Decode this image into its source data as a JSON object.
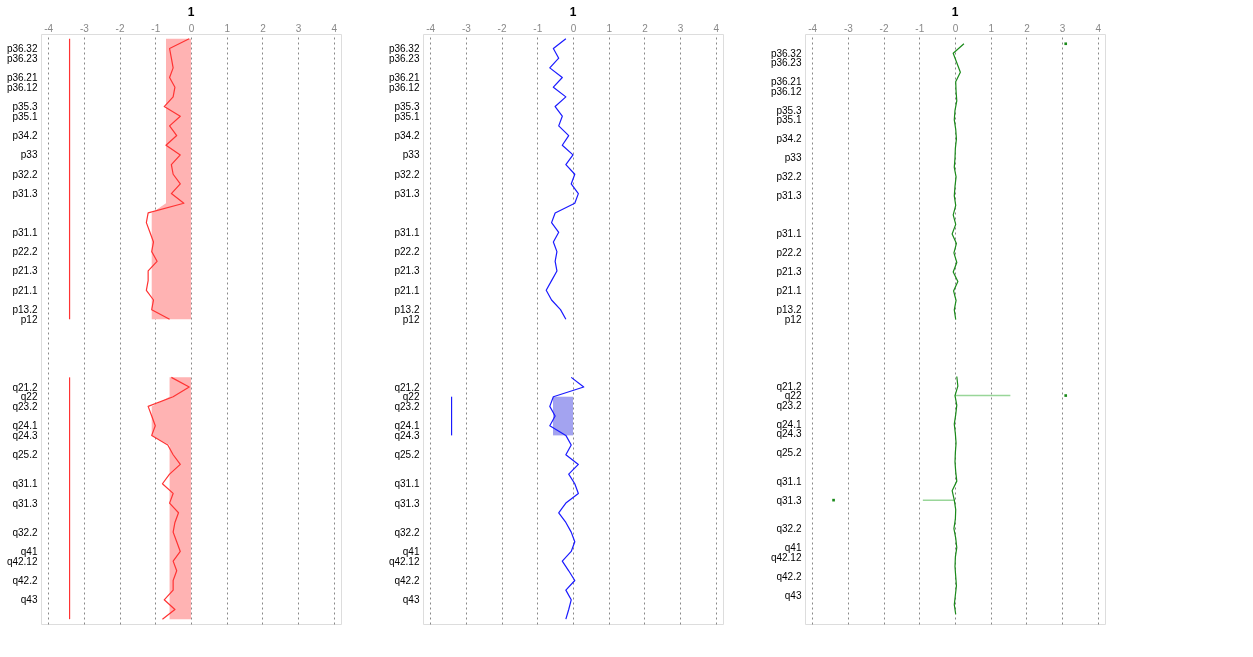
{
  "chart_data": [
    {
      "type": "line",
      "title": "1",
      "orientation": "horizontal",
      "xlim": [
        -4.2,
        4.2
      ],
      "xticks": [
        -4,
        -3,
        -2,
        -1,
        0,
        1,
        2,
        3,
        4
      ],
      "grid": "x",
      "categories": [
        null,
        "p36.32",
        "p36.23",
        null,
        "p36.21",
        "p36.12",
        null,
        "p35.3",
        "p35.1",
        null,
        "p34.2",
        null,
        "p33",
        null,
        "p32.2",
        null,
        "p31.3",
        null,
        null,
        null,
        "p31.1",
        null,
        "p22.2",
        null,
        "p21.3",
        null,
        "p21.1",
        null,
        "p13.2",
        "p12",
        null,
        null,
        null,
        null,
        null,
        null,
        "q21.2",
        "q22",
        "q23.2",
        null,
        "q24.1",
        "q24.3",
        null,
        "q25.2",
        null,
        null,
        "q31.1",
        null,
        "q31.3",
        null,
        null,
        "q32.2",
        null,
        "q41",
        "q42.12",
        null,
        "q42.2",
        null,
        "q43",
        null,
        null
      ],
      "series": [
        {
          "type": "area",
          "color": "#ffb3b3",
          "values": [
            -0.7,
            -0.7,
            -0.7,
            -0.7,
            -0.7,
            -0.7,
            -0.7,
            -0.7,
            -0.7,
            -0.7,
            -0.7,
            -0.7,
            -0.7,
            -0.7,
            -0.7,
            -0.7,
            -0.7,
            -0.7,
            -1.1,
            -1.1,
            -1.1,
            -1.1,
            -1.1,
            -1.1,
            -1.1,
            -1.1,
            -1.1,
            -1.1,
            -1.1,
            -1.1,
            null,
            null,
            null,
            null,
            null,
            -0.6,
            -0.6,
            -0.6,
            -1.1,
            -1.1,
            -1.1,
            -1.1,
            -0.6,
            -0.6,
            -0.6,
            -0.6,
            -0.6,
            -0.6,
            -0.6,
            -0.6,
            -0.6,
            -0.6,
            -0.6,
            -0.6,
            -0.6,
            -0.6,
            -0.6,
            -0.6,
            -0.6,
            -0.6,
            -0.6
          ]
        },
        {
          "color": "#ff3333",
          "values": [
            -0.05,
            -0.6,
            -0.55,
            -0.5,
            -0.6,
            -0.45,
            -0.5,
            -0.75,
            -0.3,
            -0.6,
            -0.4,
            -0.7,
            -0.3,
            -0.55,
            -0.5,
            -0.3,
            -0.55,
            -0.2,
            -1.2,
            -1.25,
            -1.15,
            -1.05,
            -1.1,
            -0.95,
            -1.2,
            -1.2,
            -1.25,
            -1.05,
            -1.1,
            -0.6,
            null,
            null,
            null,
            null,
            null,
            -0.55,
            -0.05,
            -0.5,
            -1.2,
            -1.1,
            -1.0,
            -1.1,
            -0.65,
            -0.5,
            -0.3,
            -0.6,
            -0.8,
            -0.5,
            -0.6,
            -0.35,
            -0.45,
            -0.5,
            -0.4,
            -0.3,
            -0.5,
            -0.4,
            -0.5,
            -0.5,
            -0.75,
            -0.45,
            -0.8
          ]
        },
        {
          "color": "#ff3333",
          "values": [
            -3.4,
            -3.4,
            -3.4,
            -3.4,
            -3.4,
            -3.4,
            -3.4,
            -3.4,
            -3.4,
            -3.4,
            -3.4,
            -3.4,
            -3.4,
            -3.4,
            -3.4,
            -3.4,
            -3.4,
            -3.4,
            -3.4,
            -3.4,
            -3.4,
            -3.4,
            -3.4,
            -3.4,
            -3.4,
            -3.4,
            -3.4,
            -3.4,
            -3.4,
            -3.4,
            null,
            null,
            null,
            null,
            null,
            -3.4,
            -3.4,
            -3.4,
            -3.4,
            -3.4,
            -3.4,
            -3.4,
            -3.4,
            -3.4,
            -3.4,
            -3.4,
            -3.4,
            -3.4,
            -3.4,
            -3.4,
            -3.4,
            -3.4,
            -3.4,
            -3.4,
            -3.4,
            -3.4,
            -3.4,
            -3.4,
            -3.4,
            -3.4,
            -3.4
          ]
        }
      ]
    },
    {
      "type": "line",
      "title": "1",
      "orientation": "horizontal",
      "xlim": [
        -4.2,
        4.2
      ],
      "xticks": [
        -4,
        -3,
        -2,
        -1,
        0,
        1,
        2,
        3,
        4
      ],
      "grid": "x",
      "categories": [
        null,
        "p36.32",
        "p36.23",
        null,
        "p36.21",
        "p36.12",
        null,
        "p35.3",
        "p35.1",
        null,
        "p34.2",
        null,
        "p33",
        null,
        "p32.2",
        null,
        "p31.3",
        null,
        null,
        null,
        "p31.1",
        null,
        "p22.2",
        null,
        "p21.3",
        null,
        "p21.1",
        null,
        "p13.2",
        "p12",
        null,
        null,
        null,
        null,
        null,
        null,
        "q21.2",
        "q22",
        "q23.2",
        null,
        "q24.1",
        "q24.3",
        null,
        "q25.2",
        null,
        null,
        "q31.1",
        null,
        "q31.3",
        null,
        null,
        "q32.2",
        null,
        "q41",
        "q42.12",
        null,
        "q42.2",
        null,
        "q43",
        null,
        null
      ],
      "series": [
        {
          "type": "area",
          "color": "#a3a3f0",
          "values": [
            null,
            null,
            null,
            null,
            null,
            null,
            null,
            null,
            null,
            null,
            null,
            null,
            null,
            null,
            null,
            null,
            null,
            null,
            null,
            null,
            null,
            null,
            null,
            null,
            null,
            null,
            null,
            null,
            null,
            null,
            null,
            null,
            null,
            null,
            null,
            null,
            null,
            -0.56,
            -0.56,
            -0.56,
            -0.56,
            -0.56,
            null,
            null,
            null,
            null,
            null,
            null,
            null,
            null,
            null,
            null,
            null,
            null,
            null,
            null,
            null,
            null,
            null,
            null,
            null
          ]
        },
        {
          "color": "#1a1aff",
          "values": [
            -0.2,
            -0.55,
            -0.4,
            -0.65,
            -0.3,
            -0.55,
            -0.2,
            -0.5,
            -0.3,
            -0.4,
            -0.12,
            -0.3,
            0,
            -0.2,
            0.05,
            -0.05,
            0.15,
            0.05,
            -0.5,
            -0.6,
            -0.4,
            -0.55,
            -0.45,
            -0.5,
            -0.45,
            -0.6,
            -0.75,
            -0.6,
            -0.35,
            -0.2,
            null,
            null,
            null,
            null,
            null,
            -0.05,
            0.3,
            -0.55,
            -0.65,
            -0.5,
            -0.65,
            -0.2,
            -0.05,
            -0.2,
            0.15,
            -0.12,
            0.05,
            0.15,
            -0.2,
            -0.4,
            -0.2,
            -0.05,
            0.05,
            -0.05,
            -0.3,
            -0.12,
            0.05,
            -0.2,
            -0.05,
            -0.12,
            -0.2
          ]
        },
        {
          "color": "#1a1aff",
          "values": [
            null,
            null,
            null,
            null,
            null,
            null,
            null,
            null,
            null,
            null,
            null,
            null,
            null,
            null,
            null,
            null,
            null,
            null,
            null,
            null,
            null,
            null,
            null,
            null,
            null,
            null,
            null,
            null,
            null,
            null,
            null,
            null,
            null,
            null,
            null,
            null,
            null,
            -3.4,
            -3.4,
            -3.4,
            -3.4,
            -3.4,
            null,
            null,
            null,
            null,
            null,
            null,
            null,
            null,
            null,
            null,
            null,
            null,
            null,
            null,
            null,
            null,
            null,
            null,
            null
          ]
        }
      ]
    },
    {
      "type": "line",
      "title": "1",
      "orientation": "horizontal",
      "xlim": [
        -4.2,
        4.2
      ],
      "xticks": [
        -4,
        -3,
        -2,
        -1,
        0,
        1,
        2,
        3,
        4
      ],
      "grid": "x",
      "categories": [
        null,
        "p36.32",
        "p36.23",
        null,
        "p36.21",
        "p36.12",
        null,
        "p35.3",
        "p35.1",
        null,
        "p34.2",
        null,
        "p33",
        null,
        "p32.2",
        null,
        "p31.3",
        null,
        null,
        null,
        "p31.1",
        null,
        "p22.2",
        null,
        "p21.3",
        null,
        "p21.1",
        null,
        "p13.2",
        "p12",
        null,
        null,
        null,
        null,
        null,
        null,
        "q21.2",
        "q22",
        "q23.2",
        null,
        "q24.1",
        "q24.3",
        null,
        "q25.2",
        null,
        null,
        "q31.1",
        null,
        "q31.3",
        null,
        null,
        "q32.2",
        null,
        "q41",
        "q42.12",
        null,
        "q42.2",
        null,
        "q43",
        null,
        null
      ],
      "series": [
        {
          "type": "bar",
          "color": "#99d699",
          "values": [
            null,
            null,
            null,
            null,
            null,
            null,
            null,
            null,
            null,
            null,
            null,
            null,
            null,
            null,
            null,
            null,
            null,
            null,
            null,
            null,
            null,
            null,
            null,
            null,
            null,
            null,
            null,
            null,
            null,
            null,
            null,
            null,
            null,
            null,
            null,
            null,
            null,
            1.55,
            null,
            null,
            null,
            null,
            null,
            null,
            null,
            null,
            null,
            null,
            -0.9,
            null,
            null,
            null,
            null,
            null,
            null,
            null,
            null,
            null,
            null,
            null,
            null
          ]
        },
        {
          "color": "#1a8a1a",
          "values": [
            0.25,
            -0.05,
            0.05,
            0.15,
            0.02,
            0.03,
            0.05,
            0,
            -0.02,
            0.02,
            0.04,
            0.01,
            0,
            -0.02,
            0.03,
            0,
            -0.02,
            0.02,
            -0.05,
            0.02,
            -0.08,
            0.04,
            -0.03,
            0.05,
            -0.05,
            0.08,
            -0.04,
            0.03,
            -0.02,
            0.02,
            null,
            null,
            null,
            null,
            null,
            0.05,
            0.08,
            0,
            0.05,
            0.02,
            -0.02,
            0.01,
            0.03,
            0.01,
            0,
            0.02,
            0.05,
            -0.08,
            -0.02,
            0.02,
            0.01,
            -0.03,
            0.02,
            0.05,
            0.01,
            0,
            0.02,
            0.04,
            0.01,
            -0.02,
            0.02
          ]
        },
        {
          "type": "scatter",
          "color": "#1a8a1a",
          "values": [
            3.1,
            null,
            null,
            null,
            null,
            null,
            null,
            null,
            null,
            null,
            null,
            null,
            null,
            null,
            null,
            null,
            null,
            null,
            null,
            null,
            null,
            null,
            null,
            null,
            null,
            null,
            null,
            null,
            null,
            null,
            null,
            null,
            null,
            null,
            null,
            null,
            null,
            3.1,
            null,
            null,
            null,
            null,
            null,
            null,
            null,
            null,
            null,
            null,
            -3.4,
            null,
            null,
            null,
            null,
            null,
            null,
            null,
            null,
            null,
            null,
            null,
            null
          ]
        }
      ]
    }
  ]
}
